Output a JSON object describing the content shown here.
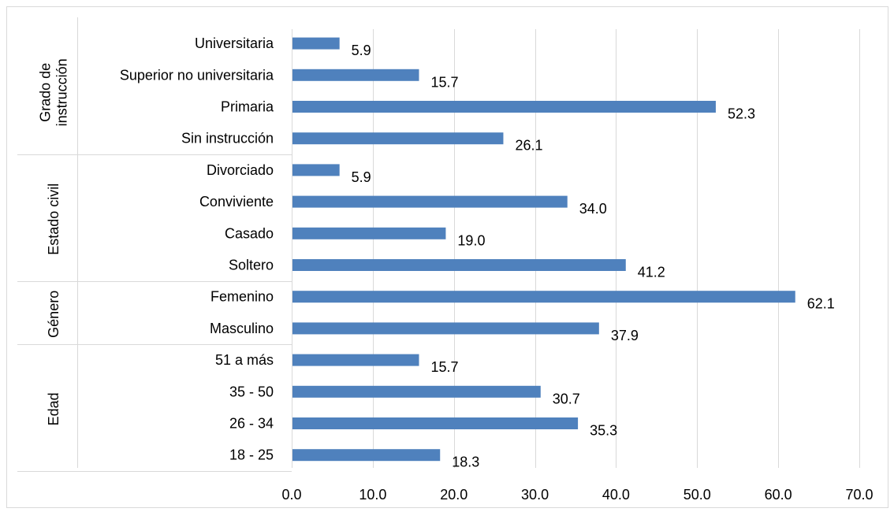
{
  "chart_data": {
    "type": "bar",
    "orientation": "horizontal",
    "bar_color": "#4f81bd",
    "grid": true,
    "xlim": [
      0,
      70
    ],
    "x_ticks": [
      "0.0",
      "10.0",
      "20.0",
      "30.0",
      "40.0",
      "50.0",
      "60.0",
      "70.0"
    ],
    "x_tick_values": [
      0,
      10,
      20,
      30,
      40,
      50,
      60,
      70
    ],
    "groups": [
      {
        "name_lines": [
          "Grado de",
          "instrucción"
        ],
        "categories": [
          {
            "label": "Universitaria",
            "value": 5.9,
            "value_label": "5.9"
          },
          {
            "label": "Superior no universitaria",
            "value": 15.7,
            "value_label": "15.7"
          },
          {
            "label": "Primaria",
            "value": 52.3,
            "value_label": "52.3"
          },
          {
            "label": "Sin instrucción",
            "value": 26.1,
            "value_label": "26.1"
          }
        ]
      },
      {
        "name_lines": [
          "Estado civil"
        ],
        "categories": [
          {
            "label": "Divorciado",
            "value": 5.9,
            "value_label": "5.9"
          },
          {
            "label": "Conviviente",
            "value": 34.0,
            "value_label": "34.0"
          },
          {
            "label": "Casado",
            "value": 19.0,
            "value_label": "19.0"
          },
          {
            "label": "Soltero",
            "value": 41.2,
            "value_label": "41.2"
          }
        ]
      },
      {
        "name_lines": [
          "Género"
        ],
        "categories": [
          {
            "label": "Femenino",
            "value": 62.1,
            "value_label": "62.1"
          },
          {
            "label": "Masculino",
            "value": 37.9,
            "value_label": "37.9"
          }
        ]
      },
      {
        "name_lines": [
          "Edad"
        ],
        "categories": [
          {
            "label": "51 a más",
            "value": 15.7,
            "value_label": "15.7"
          },
          {
            "label": "35 - 50",
            "value": 30.7,
            "value_label": "30.7"
          },
          {
            "label": "26 - 34",
            "value": 35.3,
            "value_label": "35.3"
          },
          {
            "label": "18 - 25",
            "value": 18.3,
            "value_label": "18.3"
          }
        ]
      }
    ]
  }
}
